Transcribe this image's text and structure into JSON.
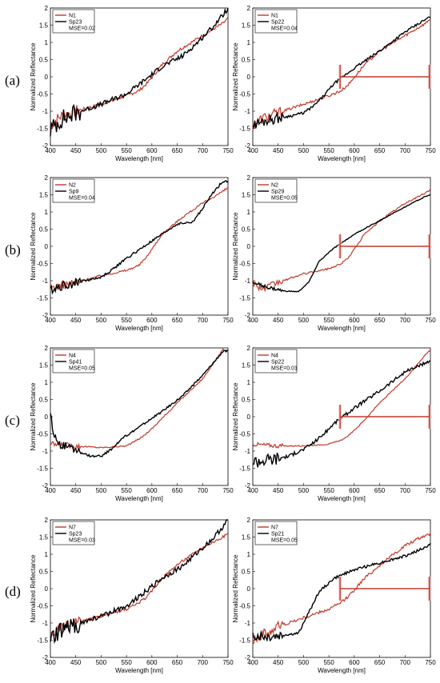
{
  "row_labels": [
    "(a)",
    "(b)",
    "(c)",
    "(d)"
  ],
  "colors": {
    "measured": "#c0392b",
    "library": "#000000",
    "band": "#f4c7c3"
  },
  "chart_data": [
    {
      "type": "line",
      "panel": "a-left",
      "xlabel": "Wavelength [nm]",
      "ylabel": "Normalized Reflectance",
      "xlim": [
        400,
        750
      ],
      "ylim": [
        -2,
        2
      ],
      "xticks": [
        400,
        450,
        500,
        550,
        600,
        650,
        700,
        750
      ],
      "yticks": [
        -2,
        -1.5,
        -1,
        -0.5,
        0,
        0.5,
        1,
        1.5,
        2
      ],
      "legend": [
        "N1",
        "Sp23",
        "MSE=0.02"
      ],
      "marker": null,
      "series": [
        {
          "name": "N1",
          "color": "measured",
          "noise": 0.18,
          "x": [
            400,
            420,
            450,
            500,
            550,
            575,
            590,
            620,
            650,
            700,
            740,
            750
          ],
          "y": [
            -1.4,
            -1.15,
            -1.0,
            -0.8,
            -0.55,
            -0.4,
            -0.2,
            0.35,
            0.75,
            1.2,
            1.55,
            1.7
          ]
        },
        {
          "name": "Sp23",
          "color": "library",
          "noise": 0.28,
          "x": [
            400,
            420,
            450,
            500,
            550,
            590,
            620,
            660,
            690,
            720,
            740,
            750
          ],
          "y": [
            -1.55,
            -1.25,
            -1.05,
            -0.8,
            -0.5,
            -0.05,
            0.3,
            0.6,
            1.0,
            1.45,
            1.8,
            2.0
          ]
        }
      ]
    },
    {
      "type": "line",
      "panel": "a-right",
      "xlabel": "Wavelength [nm]",
      "ylabel": "Normalized Reflectance",
      "xlim": [
        400,
        750
      ],
      "ylim": [
        -2,
        2
      ],
      "xticks": [
        400,
        450,
        500,
        550,
        600,
        650,
        700,
        750
      ],
      "yticks": [
        -2,
        -1.5,
        -1,
        -0.5,
        0,
        0.5,
        1,
        1.5,
        2
      ],
      "legend": [
        "N1",
        "Sp22",
        "MSE=0.04"
      ],
      "marker": {
        "x0": 572,
        "x1": 748,
        "y": 0
      },
      "series": [
        {
          "name": "N1",
          "color": "measured",
          "noise": 0.16,
          "x": [
            400,
            420,
            450,
            500,
            550,
            575,
            590,
            620,
            650,
            700,
            740,
            750
          ],
          "y": [
            -1.4,
            -1.2,
            -1.05,
            -0.8,
            -0.55,
            -0.4,
            -0.2,
            0.35,
            0.75,
            1.2,
            1.55,
            1.7
          ]
        },
        {
          "name": "Sp22",
          "color": "library",
          "noise": 0.15,
          "x": [
            400,
            430,
            470,
            500,
            520,
            540,
            560,
            600,
            650,
            700,
            750
          ],
          "y": [
            -1.4,
            -1.25,
            -1.15,
            -1.05,
            -0.85,
            -0.55,
            -0.2,
            0.25,
            0.75,
            1.3,
            1.75
          ]
        }
      ]
    },
    {
      "type": "line",
      "panel": "b-left",
      "xlabel": "Wavelength [nm]",
      "ylabel": "Normalized Reflectance",
      "xlim": [
        400,
        750
      ],
      "ylim": [
        -2,
        2
      ],
      "xticks": [
        400,
        450,
        500,
        550,
        600,
        650,
        700,
        750
      ],
      "yticks": [
        -2,
        -1.5,
        -1,
        -0.5,
        0,
        0.5,
        1,
        1.5,
        2
      ],
      "legend": [
        "N2",
        "Sp9",
        "MSE=0.04"
      ],
      "marker": null,
      "series": [
        {
          "name": "N2",
          "color": "measured",
          "noise": 0.12,
          "x": [
            400,
            450,
            500,
            550,
            575,
            590,
            620,
            660,
            700,
            740,
            750
          ],
          "y": [
            -1.2,
            -1.05,
            -0.85,
            -0.7,
            -0.55,
            -0.3,
            0.35,
            0.85,
            1.25,
            1.6,
            1.7
          ]
        },
        {
          "name": "Sp9",
          "color": "library",
          "noise": 0.14,
          "x": [
            400,
            450,
            500,
            520,
            550,
            600,
            650,
            680,
            700,
            720,
            740,
            750
          ],
          "y": [
            -1.25,
            -1.05,
            -0.9,
            -0.7,
            -0.35,
            0.15,
            0.65,
            0.7,
            1.1,
            1.55,
            1.9,
            1.9
          ]
        }
      ]
    },
    {
      "type": "line",
      "panel": "b-right",
      "xlabel": "Wavelength [nm]",
      "ylabel": "Normalized Reflectance",
      "xlim": [
        400,
        750
      ],
      "ylim": [
        -2,
        2
      ],
      "xticks": [
        400,
        450,
        500,
        550,
        600,
        650,
        700,
        750
      ],
      "yticks": [
        -2,
        -1.5,
        -1,
        -0.5,
        0,
        0.5,
        1,
        1.5,
        2
      ],
      "legend": [
        "N2",
        "Sp29",
        "MSE=0.05"
      ],
      "marker": {
        "x0": 572,
        "x1": 748,
        "y": 0
      },
      "series": [
        {
          "name": "N2",
          "color": "measured",
          "noise": 0.1,
          "x": [
            400,
            420,
            450,
            500,
            550,
            575,
            590,
            620,
            660,
            700,
            740,
            750
          ],
          "y": [
            -1.05,
            -1.25,
            -1.05,
            -0.8,
            -0.65,
            -0.5,
            -0.3,
            0.35,
            0.85,
            1.25,
            1.55,
            1.65
          ]
        },
        {
          "name": "Sp29",
          "color": "library",
          "noise": 0.05,
          "x": [
            400,
            430,
            460,
            490,
            510,
            530,
            560,
            600,
            650,
            700,
            740,
            750
          ],
          "y": [
            -1.05,
            -1.2,
            -1.3,
            -1.32,
            -1.05,
            -0.45,
            -0.05,
            0.35,
            0.75,
            1.15,
            1.45,
            1.5
          ]
        }
      ]
    },
    {
      "type": "line",
      "panel": "c-left",
      "xlabel": "Wavelength [nm]",
      "ylabel": "Normalized Reflectance",
      "xlim": [
        400,
        750
      ],
      "ylim": [
        -2,
        2
      ],
      "xticks": [
        400,
        450,
        500,
        550,
        600,
        650,
        700,
        750
      ],
      "yticks": [
        -2,
        -1.5,
        -1,
        -0.5,
        0,
        0.5,
        1,
        1.5,
        2
      ],
      "legend": [
        "N4",
        "Sp41",
        "MSE=0.05"
      ],
      "marker": null,
      "series": [
        {
          "name": "N4",
          "color": "measured",
          "noise": 0.08,
          "x": [
            400,
            450,
            500,
            550,
            580,
            600,
            620,
            650,
            700,
            740,
            750
          ],
          "y": [
            -0.8,
            -0.85,
            -0.9,
            -0.85,
            -0.6,
            -0.35,
            -0.05,
            0.4,
            1.1,
            1.95,
            1.9
          ]
        },
        {
          "name": "Sp41",
          "color": "library",
          "noise": 0.12,
          "x": [
            400,
            405,
            420,
            450,
            480,
            500,
            520,
            540,
            580,
            620,
            660,
            700,
            740
          ],
          "y": [
            0.2,
            -0.5,
            -0.8,
            -1.0,
            -1.15,
            -1.15,
            -0.95,
            -0.65,
            -0.25,
            0.15,
            0.6,
            1.2,
            1.9
          ]
        }
      ]
    },
    {
      "type": "line",
      "panel": "c-right",
      "xlabel": "Wavelength [nm]",
      "ylabel": "Normalized Reflectance",
      "xlim": [
        400,
        750
      ],
      "ylim": [
        -2,
        2
      ],
      "xticks": [
        400,
        450,
        500,
        550,
        600,
        650,
        700,
        750
      ],
      "yticks": [
        -2,
        -1.5,
        -1,
        -0.5,
        0,
        0.5,
        1,
        1.5,
        2
      ],
      "legend": [
        "N4",
        "Sp22",
        "MSE=0.01"
      ],
      "marker": {
        "x0": 572,
        "x1": 748,
        "y": 0
      },
      "series": [
        {
          "name": "N4",
          "color": "measured",
          "noise": 0.06,
          "x": [
            400,
            450,
            500,
            550,
            580,
            600,
            620,
            650,
            700,
            740,
            750
          ],
          "y": [
            -0.8,
            -0.85,
            -0.85,
            -0.8,
            -0.65,
            -0.4,
            -0.1,
            0.4,
            1.1,
            1.8,
            1.95
          ]
        },
        {
          "name": "Sp22",
          "color": "library",
          "noise": 0.2,
          "x": [
            400,
            430,
            470,
            500,
            520,
            540,
            560,
            600,
            650,
            700,
            740,
            750
          ],
          "y": [
            -1.3,
            -1.25,
            -1.15,
            -0.95,
            -0.75,
            -0.5,
            -0.2,
            0.25,
            0.75,
            1.3,
            1.55,
            1.65
          ]
        }
      ]
    },
    {
      "type": "line",
      "panel": "d-left",
      "xlabel": "Wavelength [nm]",
      "ylabel": "Normalized Reflectance",
      "xlim": [
        400,
        750
      ],
      "ylim": [
        -2,
        2
      ],
      "xticks": [
        400,
        450,
        500,
        550,
        600,
        650,
        700,
        750
      ],
      "yticks": [
        -2,
        -1.5,
        -1,
        -0.5,
        0,
        0.5,
        1,
        1.5,
        2
      ],
      "legend": [
        "N7",
        "Sp23",
        "MSE=0.03"
      ],
      "marker": null,
      "series": [
        {
          "name": "N7",
          "color": "measured",
          "noise": 0.15,
          "x": [
            400,
            420,
            450,
            500,
            550,
            575,
            590,
            620,
            650,
            700,
            740,
            750
          ],
          "y": [
            -1.35,
            -1.15,
            -1.0,
            -0.8,
            -0.6,
            -0.4,
            -0.25,
            0.3,
            0.7,
            1.2,
            1.5,
            1.6
          ]
        },
        {
          "name": "Sp23",
          "color": "library",
          "noise": 0.28,
          "x": [
            400,
            420,
            450,
            500,
            550,
            590,
            620,
            660,
            690,
            720,
            740,
            750
          ],
          "y": [
            -1.55,
            -1.25,
            -1.05,
            -0.8,
            -0.5,
            -0.05,
            0.3,
            0.65,
            1.05,
            1.45,
            1.8,
            2.0
          ]
        }
      ]
    },
    {
      "type": "line",
      "panel": "d-right",
      "xlabel": "Wavelength [nm]",
      "ylabel": "Normalized Reflectance",
      "xlim": [
        400,
        750
      ],
      "ylim": [
        -2,
        2
      ],
      "xticks": [
        400,
        450,
        500,
        550,
        600,
        650,
        700,
        750
      ],
      "yticks": [
        -2,
        -1.5,
        -1,
        -0.5,
        0,
        0.5,
        1,
        1.5,
        2
      ],
      "legend": [
        "N7",
        "Sp21",
        "MSE=0.05"
      ],
      "marker": {
        "x0": 572,
        "x1": 748,
        "y": 0
      },
      "series": [
        {
          "name": "N7",
          "color": "measured",
          "noise": 0.18,
          "x": [
            400,
            420,
            450,
            500,
            550,
            575,
            590,
            620,
            660,
            700,
            740,
            750
          ],
          "y": [
            -1.45,
            -1.35,
            -1.1,
            -0.85,
            -0.6,
            -0.4,
            -0.2,
            0.3,
            0.8,
            1.25,
            1.55,
            1.6
          ]
        },
        {
          "name": "Sp21",
          "color": "library",
          "noise": 0.15,
          "x": [
            400,
            430,
            460,
            490,
            510,
            530,
            560,
            600,
            650,
            700,
            740,
            750
          ],
          "y": [
            -1.35,
            -1.4,
            -1.35,
            -1.3,
            -0.7,
            -0.1,
            0.3,
            0.55,
            0.75,
            0.95,
            1.2,
            1.3
          ]
        }
      ]
    }
  ]
}
